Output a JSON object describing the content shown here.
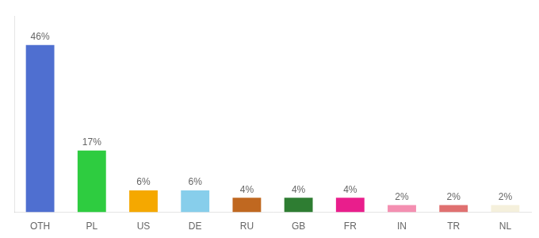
{
  "chart_data": {
    "type": "bar",
    "categories": [
      "OTH",
      "PL",
      "US",
      "DE",
      "RU",
      "GB",
      "FR",
      "IN",
      "TR",
      "NL"
    ],
    "values": [
      46,
      17,
      6,
      6,
      4,
      4,
      4,
      2,
      2,
      2
    ],
    "value_labels": [
      "46%",
      "17%",
      "6%",
      "6%",
      "4%",
      "4%",
      "4%",
      "2%",
      "2%",
      "2%"
    ],
    "colors": [
      "#4f6fd0",
      "#2ecc40",
      "#f5a800",
      "#87ceeb",
      "#c06820",
      "#2e7d32",
      "#e91e8c",
      "#f48fb1",
      "#e07070",
      "#f5f0dc"
    ],
    "ylim": [
      0,
      54
    ],
    "data_labels": true,
    "tick_labels": "x",
    "grid": false
  }
}
